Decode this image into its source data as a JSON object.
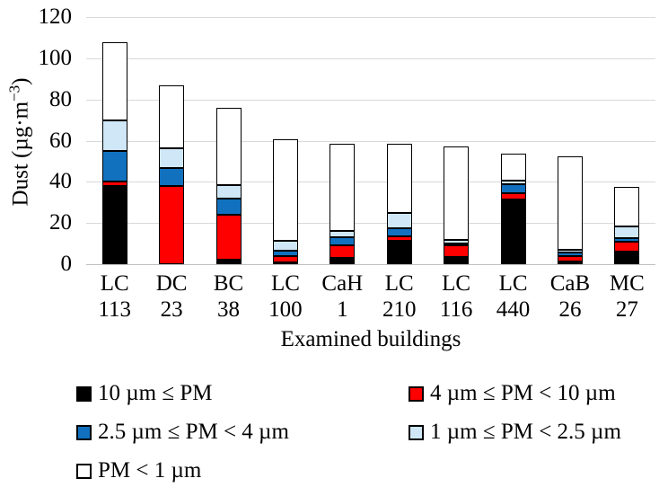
{
  "chart_data": {
    "type": "bar",
    "stacked": true,
    "xlabel": "Examined buildings",
    "ylabel": {
      "text": "Dust (µg·m⁻³)",
      "prefix": "Dust (µg·m",
      "superscript": "−3",
      "suffix": ")"
    },
    "ylim": [
      0,
      120
    ],
    "yticks": [
      0,
      20,
      40,
      60,
      80,
      100,
      120
    ],
    "grid": true,
    "legend_position": "bottom",
    "categories": [
      {
        "line1": "LC",
        "line2": "113"
      },
      {
        "line1": "DC",
        "line2": "23"
      },
      {
        "line1": "BC",
        "line2": "38"
      },
      {
        "line1": "LC",
        "line2": "100"
      },
      {
        "line1": "CaH",
        "line2": "1"
      },
      {
        "line1": "LC",
        "line2": "210"
      },
      {
        "line1": "LC",
        "line2": "116"
      },
      {
        "line1": "LC",
        "line2": "440"
      },
      {
        "line1": "CaB",
        "line2": "26"
      },
      {
        "line1": "MC",
        "line2": "27"
      }
    ],
    "series": [
      {
        "name": "10 µm ≤ PM",
        "color": "#000000",
        "values": [
          38,
          0,
          2,
          1,
          3,
          11.5,
          3.5,
          31.5,
          1.5,
          6
        ]
      },
      {
        "name": "4  µm ≤ PM < 10 µm",
        "color": "#fe0000",
        "values": [
          2,
          38,
          22,
          3,
          6,
          2,
          5.5,
          3,
          2.5,
          5
        ]
      },
      {
        "name": "2.5 µm ≤ PM < 4 µm",
        "color": "#1171be",
        "values": [
          15,
          8.5,
          8,
          2.5,
          4,
          4,
          1,
          4.5,
          1.5,
          1.5
        ]
      },
      {
        "name": "1 µm ≤ PM < 2.5 µm",
        "color": "#cfe7f7",
        "values": [
          15,
          10,
          6.5,
          5,
          3,
          7.5,
          2,
          1.5,
          1.5,
          6
        ]
      },
      {
        "name": "PM < 1 µm",
        "color": "#ffffff",
        "values": [
          38,
          30.5,
          37.5,
          49,
          42.5,
          33.5,
          45,
          13,
          45.5,
          19
        ]
      }
    ],
    "bar_totals": [
      108,
      87,
      76,
      60.5,
      58.5,
      58.5,
      57,
      53.5,
      52.5,
      37.5
    ],
    "colors": {
      "gridline": "#d9d9d9",
      "axis_line": "#bfbfbf",
      "bar_border": "#000000"
    }
  }
}
